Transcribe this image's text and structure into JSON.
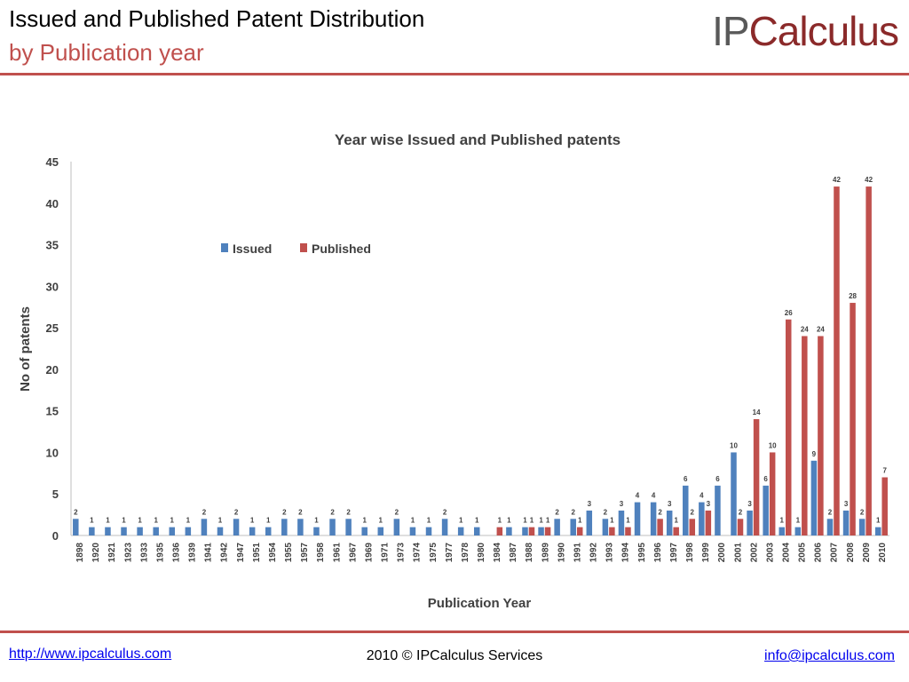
{
  "header": {
    "title_line1": "Issued and Published Patent Distribution",
    "title_line2": "by Publication year",
    "logo_part1": "IP",
    "logo_part2": "Calculus"
  },
  "footer": {
    "link": "http://www.ipcalculus.com",
    "copyright": "2010 © IPCalculus Services",
    "email": "info@ipcalculus.com"
  },
  "colors": {
    "accent": "#c0504d",
    "issued": "#4f81bd",
    "published": "#c0504d"
  },
  "chart_data": {
    "type": "bar",
    "title": "Year wise Issued and Published patents",
    "xlabel": "Publication Year",
    "ylabel": "No of patents",
    "ylim": [
      0,
      45
    ],
    "yticks": [
      "0",
      "5",
      "10",
      "15",
      "20",
      "25",
      "30",
      "35",
      "40",
      "45"
    ],
    "legend": "top-left",
    "categories": [
      "1898",
      "1920",
      "1921",
      "1923",
      "1933",
      "1935",
      "1936",
      "1939",
      "1941",
      "1942",
      "1947",
      "1951",
      "1954",
      "1955",
      "1957",
      "1958",
      "1961",
      "1967",
      "1969",
      "1971",
      "1973",
      "1974",
      "1975",
      "1977",
      "1978",
      "1980",
      "1984",
      "1987",
      "1988",
      "1989",
      "1990",
      "1991",
      "1992",
      "1993",
      "1994",
      "1995",
      "1996",
      "1997",
      "1998",
      "1999",
      "2000",
      "2001",
      "2002",
      "2003",
      "2004",
      "2005",
      "2006",
      "2007",
      "2008",
      "2009",
      "2010"
    ],
    "series": [
      {
        "name": "Issued",
        "values": [
          2,
          1,
          1,
          1,
          1,
          1,
          1,
          1,
          2,
          1,
          2,
          1,
          1,
          2,
          2,
          1,
          2,
          2,
          1,
          1,
          2,
          1,
          1,
          2,
          1,
          1,
          null,
          1,
          1,
          1,
          2,
          2,
          3,
          2,
          3,
          4,
          4,
          3,
          6,
          4,
          6,
          10,
          3,
          6,
          1,
          1,
          9,
          2,
          3,
          2,
          1
        ],
        "labels": [
          "2",
          "1",
          "1",
          "1",
          "1",
          "1",
          "1",
          "1",
          "2",
          "1",
          "2",
          "1",
          "1",
          "2",
          "2",
          "1",
          "2",
          "2",
          "1",
          "1",
          "2",
          "1",
          "1",
          "2",
          "1",
          "1",
          "",
          "1",
          "1",
          "1",
          "2",
          "2",
          "3",
          "2",
          "3",
          "4",
          "4",
          "3",
          "6",
          "4",
          "6",
          "10",
          "3",
          "6",
          "1",
          "1",
          "9",
          "2",
          "3",
          "2",
          "1"
        ]
      },
      {
        "name": "Published",
        "values": [
          null,
          null,
          null,
          null,
          null,
          null,
          null,
          null,
          null,
          null,
          null,
          null,
          null,
          null,
          null,
          null,
          null,
          null,
          null,
          null,
          null,
          null,
          null,
          null,
          null,
          null,
          1,
          null,
          1,
          1,
          null,
          1,
          null,
          1,
          1,
          null,
          2,
          1,
          2,
          3,
          null,
          2,
          14,
          10,
          26,
          24,
          24,
          42,
          28,
          42,
          7
        ],
        "labels": [
          "",
          "",
          "",
          "",
          "",
          "",
          "",
          "",
          "",
          "",
          "",
          "",
          "",
          "",
          "",
          "",
          "",
          "",
          "",
          "",
          "",
          "",
          "",
          "",
          "",
          "",
          "1",
          "",
          "1",
          "1",
          "",
          "1",
          "",
          "1",
          "1",
          "",
          "2",
          "1",
          "2",
          "3",
          "",
          "2",
          "14",
          "10",
          "26",
          "24",
          "24",
          "42",
          "28",
          "42",
          "7"
        ]
      }
    ]
  }
}
